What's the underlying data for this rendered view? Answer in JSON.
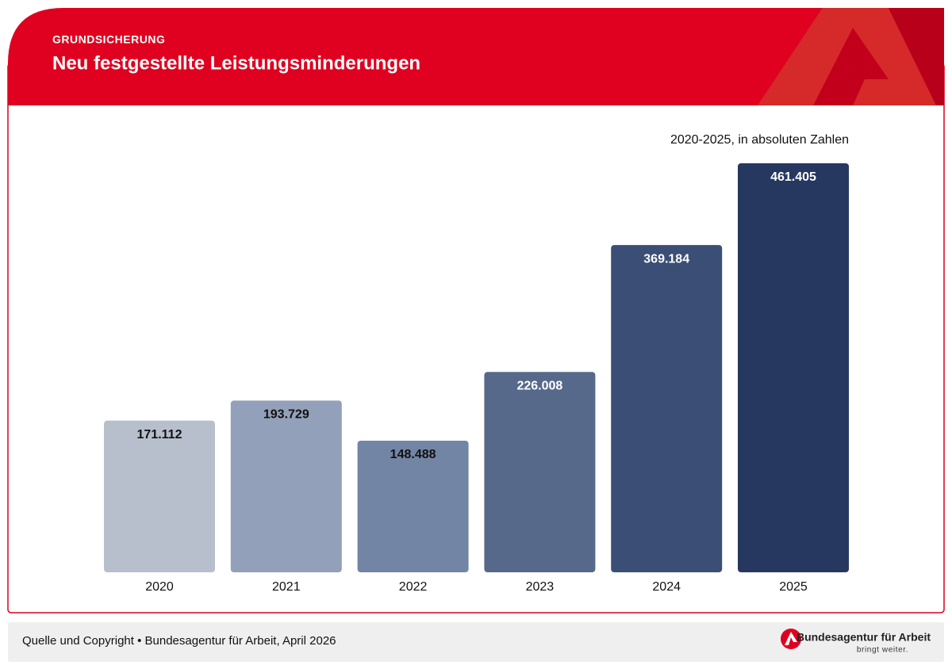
{
  "chart_data": {
    "type": "bar",
    "kicker": "GRUNDSICHERUNG",
    "title": "Neu festgestellte Leistungsminderungen",
    "subtitle": "2020-2025, in absoluten Zahlen",
    "categories": [
      "2020",
      "2021",
      "2022",
      "2023",
      "2024",
      "2025"
    ],
    "values": [
      171112,
      193729,
      148488,
      226008,
      369184,
      461405
    ],
    "value_labels": [
      "171.112",
      "193.729",
      "148.488",
      "226.008",
      "369.184",
      "461.405"
    ],
    "colors": [
      "#b8bfcc",
      "#93a0b9",
      "#7385a5",
      "#56698b",
      "#3b4e75",
      "#263860"
    ],
    "label_colors": [
      "#111111",
      "#111111",
      "#111111",
      "#ffffff",
      "#ffffff",
      "#ffffff"
    ]
  },
  "footer": {
    "source": "Quelle und Copyright • Bundesagentur für Arbeit, April 2026",
    "brand": "Bundesagentur für Arbeit",
    "slogan": "bringt weiter."
  }
}
